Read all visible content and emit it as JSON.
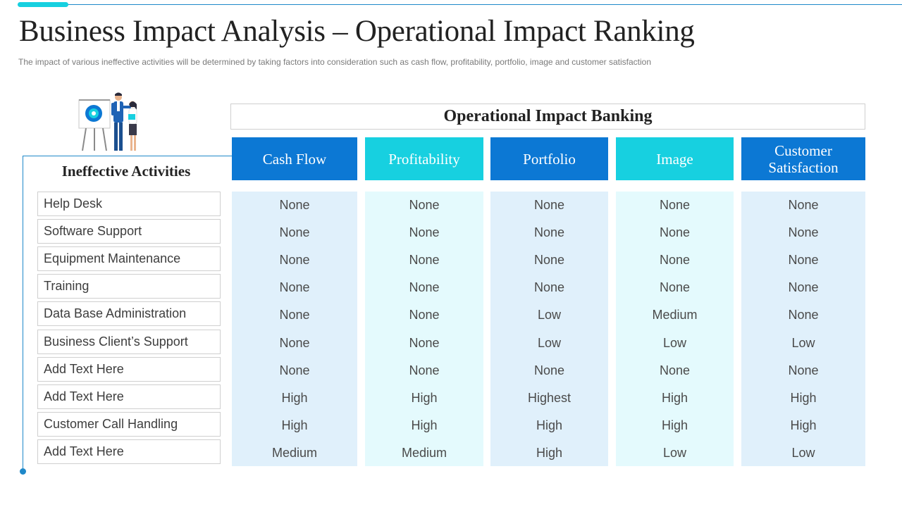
{
  "header": {
    "title": "Business Impact Analysis – Operational Impact Ranking",
    "subtitle": "The impact of various ineffective  activities will be determined by taking factors into consideration  such as cash flow, profitability, portfolio, image and customer satisfaction"
  },
  "theme": {
    "accent_dark": "#0c78d4",
    "accent_light": "#17d0e0",
    "line": "#1e88c9"
  },
  "illustration": {
    "icon": "business-presentation-icon"
  },
  "activities": {
    "title": "Ineffective Activities",
    "items": [
      "Help Desk",
      "Software Support",
      "Equipment Maintenance",
      "Training",
      "Data Base Administration",
      "Business Client’s Support",
      "Add Text Here",
      "Add Text Here",
      "Customer Call Handling",
      "Add Text Here"
    ]
  },
  "table": {
    "title": "Operational Impact Banking",
    "columns": [
      {
        "label": "Cash Flow",
        "style": "dark",
        "values": [
          "None",
          "None",
          "None",
          "None",
          "None",
          "None",
          "None",
          "High",
          "High",
          "Medium"
        ]
      },
      {
        "label": "Profitability",
        "style": "light",
        "values": [
          "None",
          "None",
          "None",
          "None",
          "None",
          "None",
          "None",
          "High",
          "High",
          "Medium"
        ]
      },
      {
        "label": "Portfolio",
        "style": "dark",
        "values": [
          "None",
          "None",
          "None",
          "None",
          "Low",
          "Low",
          "None",
          "Highest",
          "High",
          "High"
        ]
      },
      {
        "label": "Image",
        "style": "light",
        "values": [
          "None",
          "None",
          "None",
          "None",
          "Medium",
          "Low",
          "None",
          "High",
          "High",
          "Low"
        ]
      },
      {
        "label": "Customer Satisfaction",
        "style": "dark",
        "values": [
          "None",
          "None",
          "None",
          "None",
          "None",
          "Low",
          "None",
          "High",
          "High",
          "Low"
        ]
      }
    ]
  }
}
